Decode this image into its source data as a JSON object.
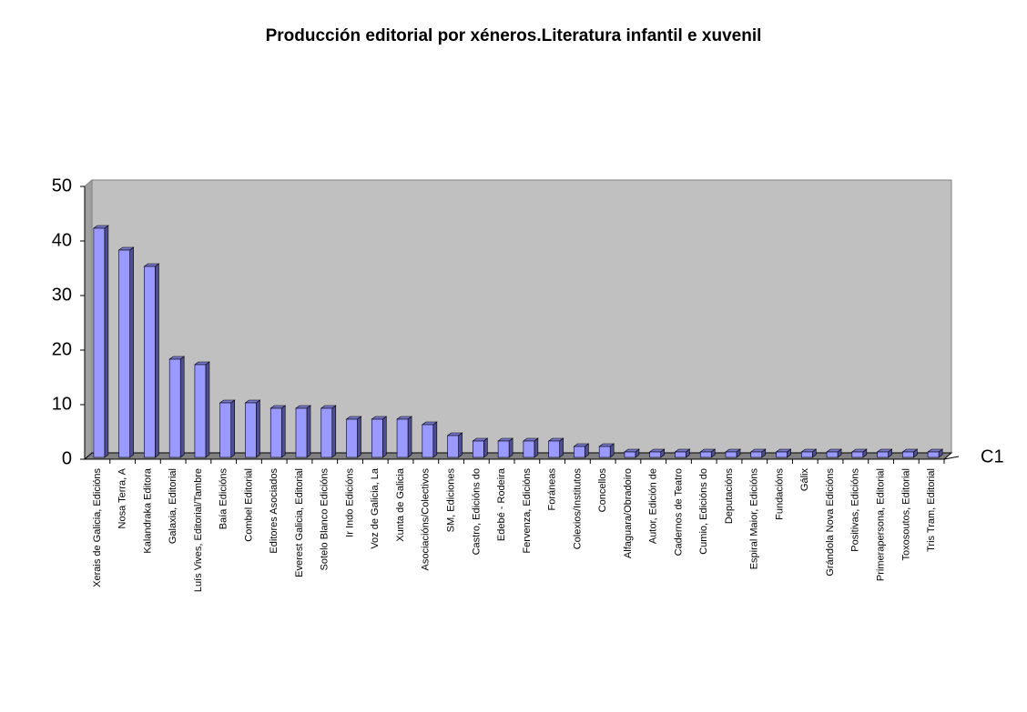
{
  "chart_data": {
    "type": "bar3d",
    "title": "Producción editorial por xéneros.Literatura infantil e xuvenil",
    "categories": [
      "Xerais de Galicia, Edicións",
      "Nosa Terra, A",
      "Kalandraka Editora",
      "Galaxia, Editorial",
      "Luís Vives, Editorial/Tambre",
      "Baía Edicións",
      "Combel Editorial",
      "Editores Asociados",
      "Everest Galicia, Editorial",
      "Sotelo Blanco Edicións",
      "Ir Indo Edicións",
      "Voz de Galicia, La",
      "Xunta de Galicia",
      "Asociacións/Colectivos",
      "SM, Ediciones",
      "Castro, Edicións do",
      "Edebé - Rodeira",
      "Fervenza, Edicións",
      "Foráneas",
      "Colexios/Institutos",
      "Concellos",
      "Alfaguara/Obradoiro",
      "Autor, Edición de",
      "Cadernos de Teatro",
      "Cumio, Edicións do",
      "Deputacións",
      "Espiral Maior, Edicións",
      "Fundacións",
      "Gálix",
      "Grándola Nova Edicións",
      "Positivas, Edicións",
      "Primerapersona, Editorial",
      "Toxosoutos, Editorial",
      "Tris Tram, Editorial"
    ],
    "series": [
      {
        "name": "C1",
        "color": "#9999ff",
        "values": [
          42,
          38,
          35,
          18,
          17,
          10,
          10,
          9,
          9,
          9,
          7,
          7,
          7,
          6,
          4,
          3,
          3,
          3,
          3,
          2,
          2,
          1,
          1,
          1,
          1,
          1,
          1,
          1,
          1,
          1,
          1,
          1,
          1,
          1
        ]
      }
    ],
    "ylim": [
      0,
      50
    ],
    "yticks": [
      0,
      10,
      20,
      30,
      40,
      50
    ],
    "grid": false
  }
}
